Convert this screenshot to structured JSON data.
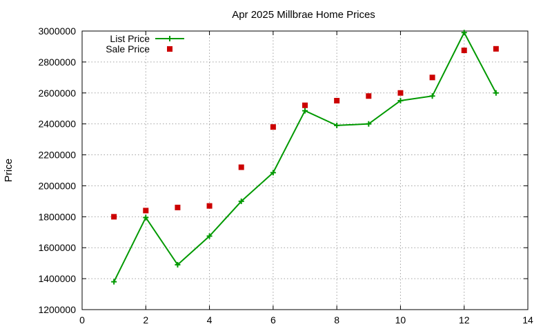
{
  "chart_data": {
    "type": "line",
    "title": "Apr 2025 Millbrae Home Prices",
    "xlabel": "",
    "ylabel": "Price",
    "xlim": [
      0,
      14
    ],
    "ylim": [
      1200000,
      3000000
    ],
    "x_ticks": [
      0,
      2,
      4,
      6,
      8,
      10,
      12,
      14
    ],
    "y_ticks": [
      1200000,
      1400000,
      1600000,
      1800000,
      2000000,
      2200000,
      2400000,
      2600000,
      2800000,
      3000000
    ],
    "grid": true,
    "legend_position": "top-left",
    "series": [
      {
        "name": "List Price",
        "style": "line-plus",
        "color": "#009900",
        "x": [
          1,
          2,
          3,
          4,
          5,
          6,
          7,
          8,
          9,
          10,
          11,
          12,
          13
        ],
        "values": [
          1380000,
          1795000,
          1490000,
          1675000,
          1900000,
          2085000,
          2485000,
          2390000,
          2400000,
          2550000,
          2580000,
          2990000,
          2600000
        ]
      },
      {
        "name": "Sale Price",
        "style": "square-points",
        "color": "#cc0000",
        "x": [
          1,
          2,
          3,
          4,
          5,
          6,
          7,
          8,
          9,
          10,
          11,
          12,
          13
        ],
        "values": [
          1800000,
          1840000,
          1860000,
          1870000,
          2120000,
          2380000,
          2520000,
          2550000,
          2580000,
          2600000,
          2700000,
          2875000,
          2885000
        ]
      }
    ]
  }
}
